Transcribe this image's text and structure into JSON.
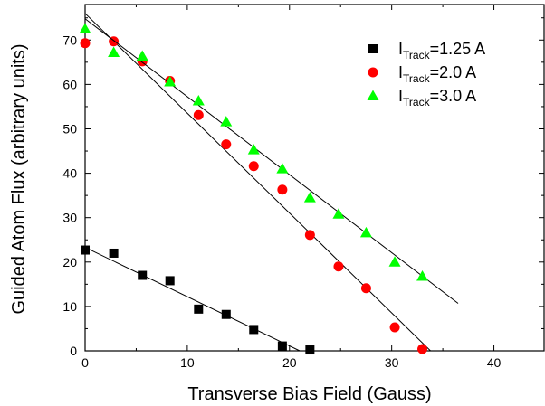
{
  "chart_data": {
    "type": "scatter",
    "xlabel": "Transverse Bias Field (Gauss)",
    "ylabel": "Guided Atom Flux (arbitrary units)",
    "xlim": [
      0,
      45
    ],
    "ylim": [
      0,
      78
    ],
    "x_ticks": [
      "0",
      "10",
      "20",
      "30",
      "40"
    ],
    "y_ticks": [
      "0",
      "10",
      "20",
      "30",
      "40",
      "50",
      "60",
      "70"
    ],
    "grid": false,
    "legend_position": "top-right",
    "series": [
      {
        "name": "I_Track=1.25 A",
        "legend_main": "I",
        "legend_sub": "Track",
        "legend_value": "=1.25 A",
        "color": "#000000",
        "marker": "square",
        "x": [
          0.0,
          2.8,
          5.6,
          8.3,
          11.1,
          13.8,
          16.5,
          19.3,
          22.0
        ],
        "y": [
          22.7,
          22.0,
          17.0,
          15.8,
          9.4,
          8.2,
          4.8,
          1.1,
          0.2
        ],
        "fit": {
          "x": [
            0.0,
            21.0
          ],
          "y": [
            23.3,
            0.0
          ]
        }
      },
      {
        "name": "I_Track=2.0 A",
        "legend_main": "I",
        "legend_sub": "Track",
        "legend_value": "=2.0 A",
        "color": "#ff0000",
        "marker": "circle",
        "x": [
          0.0,
          2.8,
          5.6,
          8.3,
          11.1,
          13.8,
          16.5,
          19.3,
          22.0,
          24.8,
          27.5,
          30.3,
          33.0
        ],
        "y": [
          69.3,
          69.7,
          65.2,
          60.8,
          53.1,
          46.5,
          41.6,
          36.3,
          26.1,
          19.0,
          14.1,
          5.3,
          0.4
        ],
        "fit": {
          "x": [
            0.0,
            33.8
          ],
          "y": [
            76.0,
            0.0
          ]
        }
      },
      {
        "name": "I_Track=3.0 A",
        "legend_main": "I",
        "legend_sub": "Track",
        "legend_value": "=3.0 A",
        "color": "#00ff00",
        "marker": "triangle",
        "x": [
          0.0,
          2.8,
          5.6,
          8.3,
          11.1,
          13.8,
          16.5,
          19.3,
          22.0,
          24.8,
          27.5,
          30.3,
          33.0
        ],
        "y": [
          72.5,
          67.2,
          66.4,
          60.6,
          56.3,
          51.6,
          45.3,
          41.0,
          34.5,
          30.8,
          26.6,
          20.0,
          16.8
        ],
        "fit": {
          "x": [
            0.0,
            36.5
          ],
          "y": [
            74.8,
            10.7
          ]
        }
      }
    ]
  }
}
